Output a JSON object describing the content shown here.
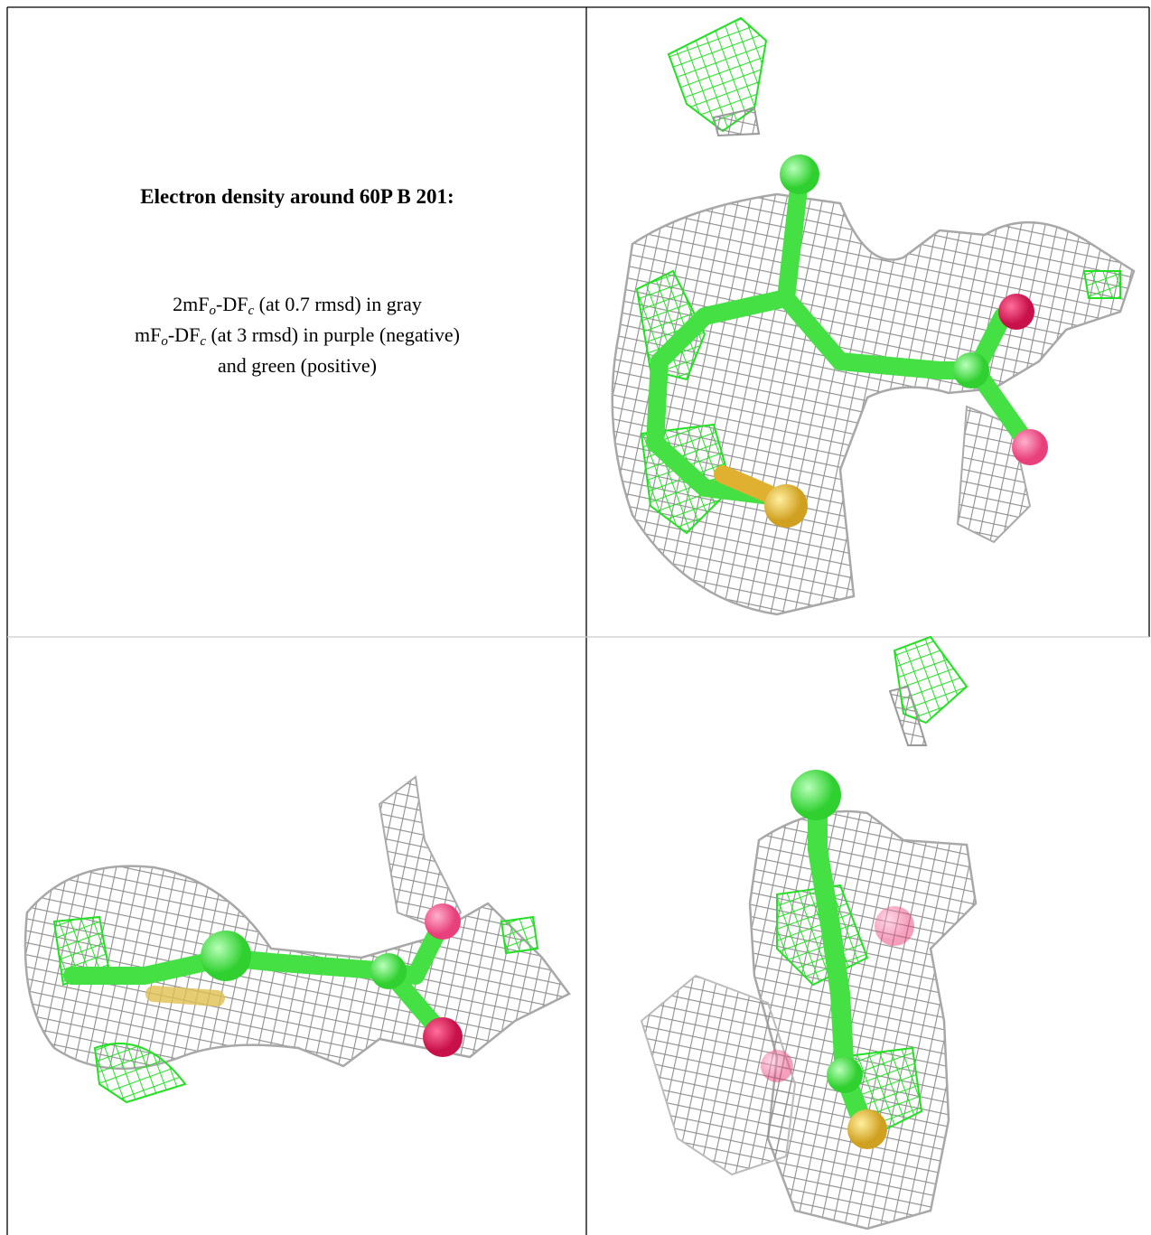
{
  "caption": {
    "title": "Electron density around 60P B 201:",
    "lines": [
      [
        "2mF",
        "o",
        "-DF",
        "c",
        " (at 0.7 rmsd) in gray"
      ],
      [
        "mF",
        "o",
        "-DF",
        "c",
        " (at 3 rmsd) in purple (negative)"
      ],
      [
        "and green (positive)"
      ]
    ]
  }
}
